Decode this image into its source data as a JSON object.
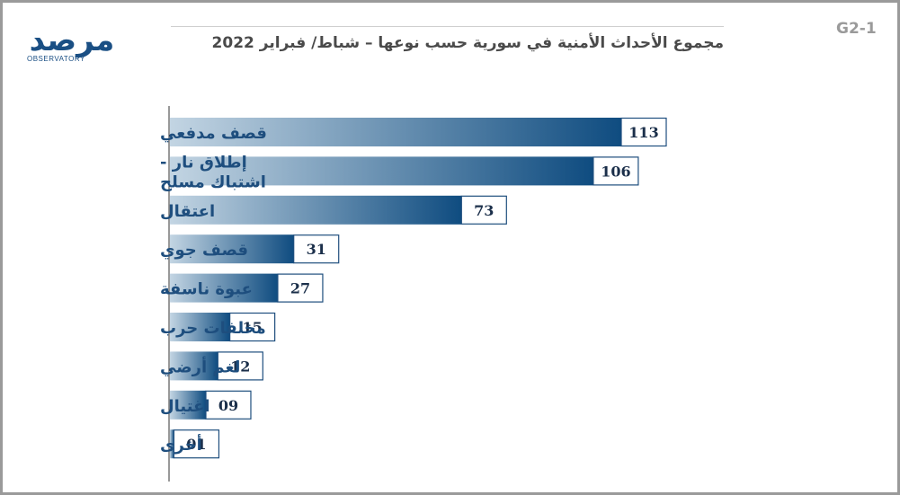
{
  "logo": {
    "main": "مرصد",
    "sub": "OBSERVATORY"
  },
  "figure_code": "G2-1",
  "title": "مجموع الأحداث الأمنية في سورية حسب نوعها – شباط/ فبراير 2022",
  "colors": {
    "bar_light": "#c3d5e3",
    "bar_dark": "#0f4c80",
    "label": "#1e4e7e",
    "value_text": "#1b2f4a",
    "value_border": "#1e4e7e"
  },
  "chart_data": {
    "type": "bar",
    "orientation": "horizontal",
    "title": "مجموع الأحداث الأمنية في سورية حسب نوعها – شباط/ فبراير 2022",
    "xlabel": "",
    "ylabel": "",
    "grid": false,
    "xlim": [
      0,
      113
    ],
    "categories": [
      {
        "label": [
          "قصف مدفعي"
        ],
        "value": 113,
        "value_label": "113"
      },
      {
        "label": [
          "إطلاق نار -",
          "اشتباك مسلح"
        ],
        "value": 106,
        "value_label": "106"
      },
      {
        "label": [
          "اعتقال"
        ],
        "value": 73,
        "value_label": "73"
      },
      {
        "label": [
          "قصف جوي"
        ],
        "value": 31,
        "value_label": "31"
      },
      {
        "label": [
          "عبوة ناسفة"
        ],
        "value": 27,
        "value_label": "27"
      },
      {
        "label": [
          "مخلفات حرب"
        ],
        "value": 15,
        "value_label": "15"
      },
      {
        "label": [
          "لغم أرضي"
        ],
        "value": 12,
        "value_label": "12"
      },
      {
        "label": [
          "اغتيال"
        ],
        "value": 9,
        "value_label": "09"
      },
      {
        "label": [
          "أخرى"
        ],
        "value": 1,
        "value_label": "01"
      }
    ]
  }
}
